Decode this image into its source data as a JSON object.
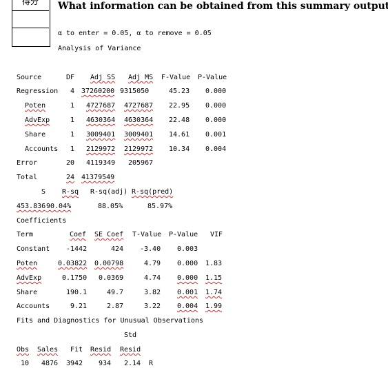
{
  "score_box": {
    "label": "得分"
  },
  "question": "What information can be obtained from this summary output?",
  "header": {
    "alpha_line": "α to enter = 0.05, α to remove = 0.05",
    "anova_title": "Analysis of Variance"
  },
  "anova": {
    "columns": [
      "Source",
      "DF",
      "Adj SS",
      "Adj MS",
      "F-Value",
      "P-Value"
    ],
    "rows": [
      [
        "Regression",
        "4",
        "37260200",
        "9315050",
        "45.23",
        "0.000"
      ],
      [
        "Poten",
        "1",
        "4727687",
        "4727687",
        "22.95",
        "0.000"
      ],
      [
        "AdvExp",
        "1",
        "4630364",
        "4630364",
        "22.48",
        "0.000"
      ],
      [
        "Share",
        "1",
        "3009401",
        "3009401",
        "14.61",
        "0.001"
      ],
      [
        "Accounts",
        "1",
        "2129972",
        "2129972",
        "10.34",
        "0.004"
      ],
      [
        "Error",
        "20",
        "4119349",
        "205967",
        "",
        ""
      ],
      [
        "Total",
        "24",
        "41379549",
        "",
        "",
        ""
      ]
    ]
  },
  "model_summary": {
    "columns": [
      "S",
      "R-sq",
      "R-sq(adj)",
      "R-sq(pred)"
    ],
    "values": [
      "453.836",
      "90.04%",
      "88.05%",
      "85.97%"
    ]
  },
  "coefficients": {
    "title": "Coefficients",
    "columns": [
      "Term",
      "Coef",
      "SE Coef",
      "T-Value",
      "P-Value",
      "VIF"
    ],
    "rows": [
      [
        "Constant",
        "-1442",
        "424",
        "-3.40",
        "0.003",
        ""
      ],
      [
        "Poten",
        "0.03822",
        "0.00798",
        "4.79",
        "0.000",
        "1.83"
      ],
      [
        "AdvExp",
        "0.1750",
        "0.0369",
        "4.74",
        "0.000",
        "1.15"
      ],
      [
        "Share",
        "190.1",
        "49.7",
        "3.82",
        "0.001",
        "1.74"
      ],
      [
        "Accounts",
        "9.21",
        "2.87",
        "3.22",
        "0.004",
        "1.99"
      ]
    ]
  },
  "unusual": {
    "title": "Fits and Diagnostics for Unusual Observations",
    "std_label": "Std",
    "columns": [
      "Obs",
      "Sales",
      "Fit",
      "Resid",
      "Resid"
    ],
    "row": [
      "10",
      "4876",
      "3942",
      "934",
      "2.14",
      "R"
    ]
  }
}
